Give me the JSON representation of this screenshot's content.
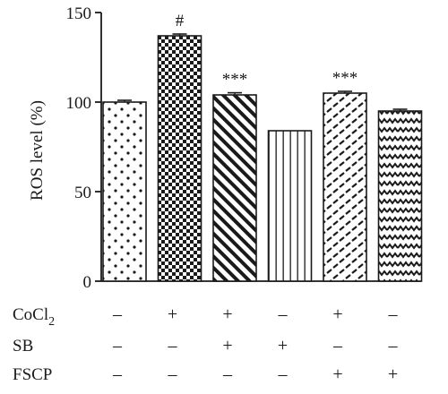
{
  "chart_data": {
    "type": "bar",
    "ylabel": "ROS level (%)",
    "ylim": [
      0,
      150
    ],
    "yticks": [
      0,
      50,
      100,
      150
    ],
    "values": [
      100,
      137,
      104,
      84,
      105,
      95
    ],
    "errors": [
      1.0,
      1.0,
      1.2,
      0.0,
      1.0,
      1.0
    ],
    "annotations": [
      "",
      "#",
      "***",
      "",
      "***",
      ""
    ],
    "patterns": [
      "dots",
      "checker",
      "diagonal-stripes",
      "vertical-lines",
      "dashed-diagonal",
      "zigzag"
    ],
    "treatment_rows": [
      {
        "label": "CoCl",
        "subscript": "2",
        "signs": [
          "–",
          "+",
          "+",
          "–",
          "+",
          "–"
        ]
      },
      {
        "label": "SB",
        "subscript": "",
        "signs": [
          "–",
          "–",
          "+",
          "+",
          "–",
          "–"
        ]
      },
      {
        "label": "FSCP",
        "subscript": "",
        "signs": [
          "–",
          "–",
          "–",
          "–",
          "+",
          "+"
        ]
      }
    ],
    "grid": false,
    "colors": {
      "ink": "#1a1a1a",
      "bar_fill": "#ffffff"
    }
  }
}
